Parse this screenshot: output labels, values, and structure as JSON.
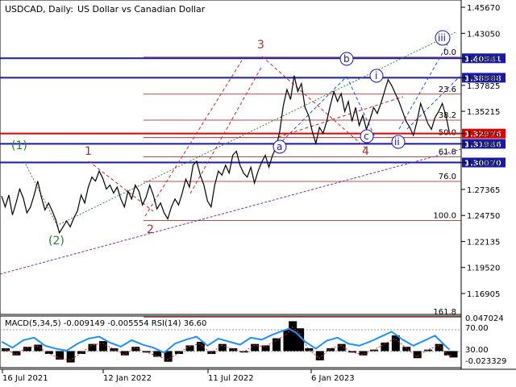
{
  "header": {
    "symbol": "USDCAD, Daily:",
    "description": "US Dollar vs Canadian Dollar"
  },
  "chart_data": {
    "type": "line",
    "price_ticks": [
      "1.45670",
      "1.43050",
      "1.40541",
      "1.38588",
      "1.37825",
      "1.35215",
      "1.32976",
      "1.31946",
      "1.30070",
      "1.27365",
      "1.24750",
      "1.22135",
      "1.19520",
      "1.16905"
    ],
    "price_ylim": [
      1.148,
      1.464
    ],
    "date_labels": [
      "16 Jul 2021",
      "12 Jan 2022",
      "11 Jul 2022",
      "6 Jan 2023"
    ],
    "levels": [
      {
        "price": 1.40541,
        "label": "1.40541",
        "color": "#1a1aa8"
      },
      {
        "price": 1.38588,
        "label": "1.38588",
        "color": "#1a1aa8"
      },
      {
        "price": 1.32976,
        "label": "1.32976",
        "color": "#e00000"
      },
      {
        "price": 1.31946,
        "label": "1.31946",
        "color": "#1a1aa8"
      },
      {
        "price": 1.3007,
        "label": "1.30070",
        "color": "#1a1aa8"
      }
    ],
    "fib_levels": [
      {
        "label": "0.0",
        "price": 1.4066
      },
      {
        "label": "23.6",
        "price": 1.3694
      },
      {
        "label": "38.2",
        "price": 1.3433
      },
      {
        "label": "50.0",
        "price": 1.3257
      },
      {
        "label": "61.8",
        "price": 1.3063
      },
      {
        "label": "76.0",
        "price": 1.2817
      },
      {
        "label": "100.0",
        "price": 1.2423
      },
      {
        "label": "161.8",
        "price": 1.1454
      }
    ],
    "wave_labels": {
      "major": [
        "(1)",
        "(2)"
      ],
      "intermediate": [
        "1",
        "2",
        "3",
        "4"
      ],
      "minor_circled": [
        "a",
        "b",
        "c",
        "i",
        "ii",
        "iii"
      ]
    },
    "series": [
      {
        "name": "price",
        "points": [
          [
            0,
            1.267
          ],
          [
            4,
            1.256
          ],
          [
            8,
            1.268
          ],
          [
            12,
            1.248
          ],
          [
            16,
            1.26
          ],
          [
            20,
            1.274
          ],
          [
            24,
            1.265
          ],
          [
            28,
            1.25
          ],
          [
            32,
            1.256
          ],
          [
            36,
            1.268
          ],
          [
            40,
            1.282
          ],
          [
            44,
            1.266
          ],
          [
            48,
            1.253
          ],
          [
            52,
            1.26
          ],
          [
            56,
            1.252
          ],
          [
            60,
            1.243
          ],
          [
            64,
            1.23
          ],
          [
            68,
            1.236
          ],
          [
            72,
            1.242
          ],
          [
            76,
            1.236
          ],
          [
            80,
            1.245
          ],
          [
            84,
            1.252
          ],
          [
            88,
            1.268
          ],
          [
            92,
            1.26
          ],
          [
            96,
            1.276
          ],
          [
            100,
            1.286
          ],
          [
            104,
            1.282
          ],
          [
            108,
            1.292
          ],
          [
            112,
            1.285
          ],
          [
            116,
            1.274
          ],
          [
            120,
            1.278
          ],
          [
            124,
            1.27
          ],
          [
            128,
            1.276
          ],
          [
            132,
            1.264
          ],
          [
            136,
            1.256
          ],
          [
            140,
            1.272
          ],
          [
            144,
            1.264
          ],
          [
            148,
            1.278
          ],
          [
            152,
            1.272
          ],
          [
            156,
            1.258
          ],
          [
            160,
            1.266
          ],
          [
            164,
            1.278
          ],
          [
            168,
            1.268
          ],
          [
            172,
            1.254
          ],
          [
            176,
            1.26
          ],
          [
            180,
            1.25
          ],
          [
            184,
            1.244
          ],
          [
            188,
            1.256
          ],
          [
            192,
            1.264
          ],
          [
            196,
            1.258
          ],
          [
            200,
            1.27
          ],
          [
            204,
            1.284
          ],
          [
            208,
            1.276
          ],
          [
            212,
            1.298
          ],
          [
            216,
            1.302
          ],
          [
            220,
            1.288
          ],
          [
            224,
            1.278
          ],
          [
            228,
            1.262
          ],
          [
            232,
            1.256
          ],
          [
            236,
            1.278
          ],
          [
            240,
            1.292
          ],
          [
            244,
            1.288
          ],
          [
            248,
            1.298
          ],
          [
            252,
            1.29
          ],
          [
            256,
            1.308
          ],
          [
            260,
            1.312
          ],
          [
            264,
            1.298
          ],
          [
            268,
            1.29
          ],
          [
            272,
            1.286
          ],
          [
            276,
            1.296
          ],
          [
            280,
            1.28
          ],
          [
            284,
            1.292
          ],
          [
            288,
            1.301
          ],
          [
            292,
            1.308
          ],
          [
            296,
            1.296
          ],
          [
            300,
            1.308
          ],
          [
            304,
            1.316
          ],
          [
            308,
            1.332
          ],
          [
            312,
            1.358
          ],
          [
            316,
            1.374
          ],
          [
            320,
            1.364
          ],
          [
            324,
            1.388
          ],
          [
            328,
            1.372
          ],
          [
            332,
            1.38
          ],
          [
            336,
            1.356
          ],
          [
            340,
            1.348
          ],
          [
            344,
            1.332
          ],
          [
            348,
            1.32
          ],
          [
            352,
            1.336
          ],
          [
            356,
            1.33
          ],
          [
            360,
            1.342
          ],
          [
            364,
            1.358
          ],
          [
            368,
            1.372
          ],
          [
            372,
            1.362
          ],
          [
            376,
            1.37
          ],
          [
            380,
            1.352
          ],
          [
            384,
            1.362
          ],
          [
            388,
            1.342
          ],
          [
            392,
            1.356
          ],
          [
            396,
            1.338
          ],
          [
            400,
            1.348
          ],
          [
            404,
            1.334
          ],
          [
            408,
            1.344
          ],
          [
            412,
            1.356
          ],
          [
            416,
            1.35
          ],
          [
            420,
            1.36
          ],
          [
            424,
            1.372
          ],
          [
            428,
            1.384
          ],
          [
            432,
            1.378
          ],
          [
            436,
            1.37
          ],
          [
            440,
            1.362
          ],
          [
            444,
            1.352
          ],
          [
            448,
            1.342
          ],
          [
            452,
            1.336
          ],
          [
            456,
            1.328
          ],
          [
            460,
            1.342
          ],
          [
            464,
            1.36
          ],
          [
            468,
            1.35
          ],
          [
            472,
            1.34
          ],
          [
            476,
            1.334
          ],
          [
            480,
            1.346
          ],
          [
            484,
            1.352
          ],
          [
            488,
            1.36
          ],
          [
            492,
            1.348
          ],
          [
            496,
            1.33
          ]
        ]
      }
    ],
    "indicator": {
      "label": "MACD(5,34,5) -0.009149 -0.005554 RSI(14) 36.60",
      "ticks": [
        "0.047024",
        "70.00",
        "30.00",
        "-0.023329"
      ],
      "ylim": [
        -0.0233,
        0.047
      ],
      "rsi_ylim": [
        0,
        100
      ],
      "rsi": [
        [
          0,
          52
        ],
        [
          12,
          40
        ],
        [
          24,
          55
        ],
        [
          36,
          60
        ],
        [
          48,
          44
        ],
        [
          60,
          38
        ],
        [
          72,
          34
        ],
        [
          84,
          48
        ],
        [
          96,
          58
        ],
        [
          108,
          62
        ],
        [
          120,
          50
        ],
        [
          132,
          42
        ],
        [
          144,
          55
        ],
        [
          156,
          46
        ],
        [
          168,
          40
        ],
        [
          180,
          30
        ],
        [
          192,
          48
        ],
        [
          204,
          56
        ],
        [
          216,
          62
        ],
        [
          228,
          44
        ],
        [
          240,
          58
        ],
        [
          252,
          52
        ],
        [
          264,
          46
        ],
        [
          276,
          60
        ],
        [
          288,
          56
        ],
        [
          300,
          66
        ],
        [
          312,
          74
        ],
        [
          318,
          78
        ],
        [
          326,
          70
        ],
        [
          336,
          52
        ],
        [
          348,
          38
        ],
        [
          360,
          54
        ],
        [
          372,
          60
        ],
        [
          384,
          48
        ],
        [
          396,
          44
        ],
        [
          408,
          52
        ],
        [
          420,
          62
        ],
        [
          432,
          72
        ],
        [
          444,
          56
        ],
        [
          456,
          44
        ],
        [
          468,
          54
        ],
        [
          480,
          64
        ],
        [
          490,
          46
        ],
        [
          496,
          36
        ]
      ],
      "macd": [
        [
          0,
          0.004
        ],
        [
          12,
          -0.006
        ],
        [
          24,
          0.006
        ],
        [
          36,
          0.009
        ],
        [
          48,
          -0.004
        ],
        [
          60,
          -0.012
        ],
        [
          72,
          -0.016
        ],
        [
          84,
          -0.004
        ],
        [
          96,
          0.01
        ],
        [
          108,
          0.014
        ],
        [
          120,
          0.004
        ],
        [
          132,
          -0.006
        ],
        [
          144,
          0.006
        ],
        [
          156,
          -0.002
        ],
        [
          168,
          -0.008
        ],
        [
          180,
          -0.015
        ],
        [
          192,
          -0.004
        ],
        [
          204,
          0.008
        ],
        [
          216,
          0.013
        ],
        [
          228,
          -0.004
        ],
        [
          240,
          0.01
        ],
        [
          252,
          0.004
        ],
        [
          264,
          -0.002
        ],
        [
          276,
          0.01
        ],
        [
          288,
          0.008
        ],
        [
          300,
          0.018
        ],
        [
          312,
          0.03
        ],
        [
          318,
          0.042
        ],
        [
          326,
          0.032
        ],
        [
          336,
          0.004
        ],
        [
          348,
          -0.013
        ],
        [
          360,
          0.004
        ],
        [
          372,
          0.01
        ],
        [
          384,
          -0.002
        ],
        [
          396,
          -0.006
        ],
        [
          408,
          0.002
        ],
        [
          420,
          0.012
        ],
        [
          432,
          0.022
        ],
        [
          444,
          0.006
        ],
        [
          456,
          -0.01
        ],
        [
          468,
          0.002
        ],
        [
          480,
          0.01
        ],
        [
          490,
          -0.006
        ],
        [
          496,
          -0.009
        ]
      ]
    }
  }
}
